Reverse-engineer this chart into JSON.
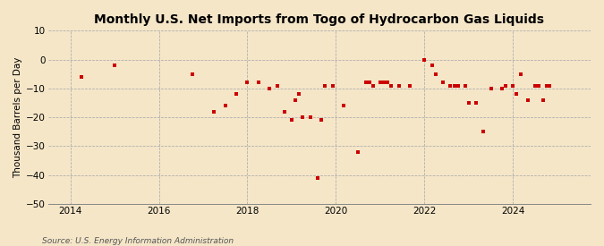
{
  "title": "Monthly U.S. Net Imports from Togo of Hydrocarbon Gas Liquids",
  "ylabel": "Thousand Barrels per Day",
  "source": "Source: U.S. Energy Information Administration",
  "background_color": "#f5e6c8",
  "dot_color": "#cc0000",
  "xlim": [
    2013.5,
    2025.75
  ],
  "ylim": [
    -50,
    10
  ],
  "yticks": [
    10,
    0,
    -10,
    -20,
    -30,
    -40,
    -50
  ],
  "xticks": [
    2014,
    2016,
    2018,
    2020,
    2022,
    2024
  ],
  "data_points": [
    [
      2014.25,
      -6
    ],
    [
      2015.0,
      -2
    ],
    [
      2016.75,
      -5
    ],
    [
      2017.25,
      -18
    ],
    [
      2017.5,
      -16
    ],
    [
      2017.75,
      -12
    ],
    [
      2018.0,
      -8
    ],
    [
      2018.25,
      -8
    ],
    [
      2018.5,
      -10
    ],
    [
      2018.67,
      -9
    ],
    [
      2018.83,
      -18
    ],
    [
      2019.0,
      -21
    ],
    [
      2019.08,
      -14
    ],
    [
      2019.17,
      -12
    ],
    [
      2019.25,
      -20
    ],
    [
      2019.42,
      -20
    ],
    [
      2019.58,
      -41
    ],
    [
      2019.67,
      -21
    ],
    [
      2019.75,
      -9
    ],
    [
      2019.92,
      -9
    ],
    [
      2020.17,
      -16
    ],
    [
      2020.5,
      -32
    ],
    [
      2020.67,
      -8
    ],
    [
      2020.75,
      -8
    ],
    [
      2020.83,
      -9
    ],
    [
      2021.0,
      -8
    ],
    [
      2021.08,
      -8
    ],
    [
      2021.17,
      -8
    ],
    [
      2021.25,
      -9
    ],
    [
      2021.42,
      -9
    ],
    [
      2021.67,
      -9
    ],
    [
      2022.0,
      0
    ],
    [
      2022.17,
      -2
    ],
    [
      2022.25,
      -5
    ],
    [
      2022.42,
      -8
    ],
    [
      2022.58,
      -9
    ],
    [
      2022.67,
      -9
    ],
    [
      2022.75,
      -9
    ],
    [
      2022.92,
      -9
    ],
    [
      2023.0,
      -15
    ],
    [
      2023.17,
      -15
    ],
    [
      2023.33,
      -25
    ],
    [
      2023.5,
      -10
    ],
    [
      2023.75,
      -10
    ],
    [
      2023.83,
      -9
    ],
    [
      2024.0,
      -9
    ],
    [
      2024.08,
      -12
    ],
    [
      2024.17,
      -5
    ],
    [
      2024.33,
      -14
    ],
    [
      2024.5,
      -9
    ],
    [
      2024.58,
      -9
    ],
    [
      2024.67,
      -14
    ],
    [
      2024.75,
      -9
    ],
    [
      2024.83,
      -9
    ]
  ]
}
